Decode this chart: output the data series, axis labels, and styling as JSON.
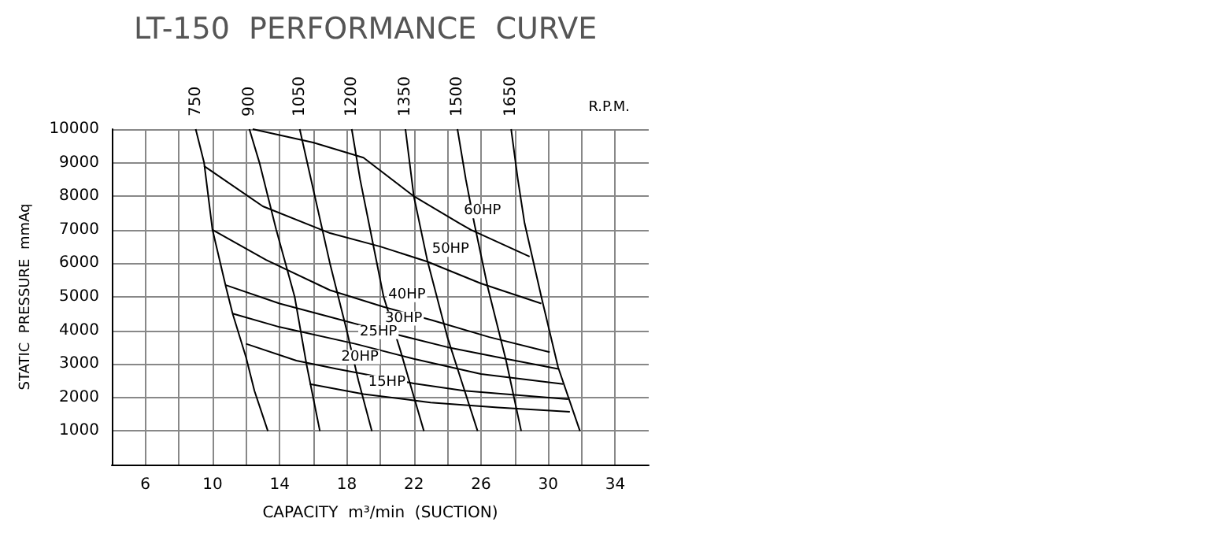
{
  "chart_data": {
    "type": "line",
    "title": "LT-150  PERFORMANCE  CURVE",
    "xlabel": "CAPACITY  m³/min  (SUCTION)",
    "ylabel": "STATIC  PRESSURE  mmAq",
    "xlim": [
      4,
      36
    ],
    "ylim": [
      0,
      10000
    ],
    "xticks": [
      {
        "value": 6,
        "label": "6"
      },
      {
        "value": 8,
        "label": null
      },
      {
        "value": 10,
        "label": "10"
      },
      {
        "value": 12,
        "label": null
      },
      {
        "value": 14,
        "label": "14"
      },
      {
        "value": 16,
        "label": null
      },
      {
        "value": 18,
        "label": "18"
      },
      {
        "value": 20,
        "label": null
      },
      {
        "value": 22,
        "label": "22"
      },
      {
        "value": 24,
        "label": null
      },
      {
        "value": 26,
        "label": "26"
      },
      {
        "value": 28,
        "label": null
      },
      {
        "value": 30,
        "label": "30"
      },
      {
        "value": 32,
        "label": null
      },
      {
        "value": 34,
        "label": "34"
      }
    ],
    "yticks": [
      1000,
      2000,
      3000,
      4000,
      5000,
      6000,
      7000,
      8000,
      9000,
      10000
    ],
    "grid": true,
    "legend": false,
    "series": [
      {
        "name": "750",
        "color": "#000000",
        "x": [
          9.0,
          9.5,
          10,
          10.8,
          11.2,
          12,
          12.5,
          13.3
        ],
        "values": [
          10000,
          9000,
          7000,
          5300,
          4500,
          3200,
          2200,
          1000
        ]
      },
      {
        "name": "900",
        "color": "#000000",
        "x": [
          12.2,
          12.8,
          13.8,
          14.9,
          15.6,
          16.4
        ],
        "values": [
          10000,
          9000,
          7000,
          5000,
          3000,
          1000
        ]
      },
      {
        "name": "1050",
        "color": "#000000",
        "x": [
          15.2,
          16.1,
          17,
          18,
          18.7,
          19.5
        ],
        "values": [
          10000,
          8000,
          6000,
          4000,
          2500,
          1000
        ]
      },
      {
        "name": "1200",
        "color": "#000000",
        "x": [
          18.3,
          18.8,
          19.4,
          20.2,
          21.2,
          22.6
        ],
        "values": [
          10000,
          8500,
          7000,
          5000,
          3400,
          1000
        ]
      },
      {
        "name": "1350",
        "color": "#000000",
        "x": [
          21.5,
          22,
          22.8,
          24,
          24.9,
          25.8
        ],
        "values": [
          10000,
          8000,
          6100,
          3800,
          2400,
          1000
        ]
      },
      {
        "name": "1500",
        "color": "#000000",
        "x": [
          24.6,
          25.1,
          25.6,
          26.4,
          27.5,
          28.4
        ],
        "values": [
          10000,
          8500,
          7200,
          5300,
          3100,
          1000
        ]
      },
      {
        "name": "1650",
        "color": "#000000",
        "x": [
          27.8,
          28.2,
          28.6,
          29.6,
          30.6,
          31.9
        ],
        "values": [
          10000,
          8500,
          7200,
          5000,
          2900,
          1000
        ]
      },
      {
        "color": "#000000",
        "x": [
          12.4,
          16,
          19,
          22,
          24.7,
          25.4,
          28.9
        ],
        "values": [
          10000,
          9600,
          9150,
          8000,
          7200,
          7000,
          6200
        ]
      },
      {
        "color": "#000000",
        "x": [
          9.5,
          13,
          17,
          20,
          22.8,
          26,
          29.6
        ],
        "values": [
          8900,
          7700,
          6900,
          6500,
          6050,
          5400,
          4800
        ]
      },
      {
        "color": "#000000",
        "x": [
          10,
          13.2,
          17,
          20.2,
          23.1,
          26.5,
          30.1
        ],
        "values": [
          7000,
          6100,
          5200,
          4700,
          4300,
          3800,
          3350
        ]
      },
      {
        "color": "#000000",
        "x": [
          10.8,
          14,
          17,
          20,
          24,
          27.5,
          30.6
        ],
        "values": [
          5350,
          4800,
          4400,
          4000,
          3500,
          3150,
          2850
        ]
      },
      {
        "color": "#000000",
        "x": [
          11.2,
          14,
          18.5,
          22,
          26,
          30.9
        ],
        "values": [
          4500,
          4100,
          3600,
          3150,
          2700,
          2400
        ]
      },
      {
        "color": "#000000",
        "x": [
          12,
          15,
          17.4,
          22,
          25,
          31.2
        ],
        "values": [
          3600,
          3100,
          2850,
          2420,
          2200,
          1950
        ]
      },
      {
        "color": "#000000",
        "x": [
          15.8,
          19,
          23,
          27,
          31.3
        ],
        "values": [
          2400,
          2100,
          1850,
          1700,
          1570
        ]
      }
    ],
    "annotations": [
      "R.P.M.",
      {
        "text": "60HP",
        "x": 24.7,
        "y": 7200
      },
      {
        "text": "50HP",
        "x": 22.8,
        "y": 6050
      },
      {
        "text": "40HP",
        "x": 20.2,
        "y": 4700
      },
      {
        "text": "30HP",
        "x": 20,
        "y": 4000
      },
      {
        "text": "25HP",
        "x": 18.5,
        "y": 3600
      },
      {
        "text": "20HP",
        "x": 17.4,
        "y": 2850
      },
      {
        "text": "15HP",
        "x": 19,
        "y": 2100
      }
    ]
  }
}
